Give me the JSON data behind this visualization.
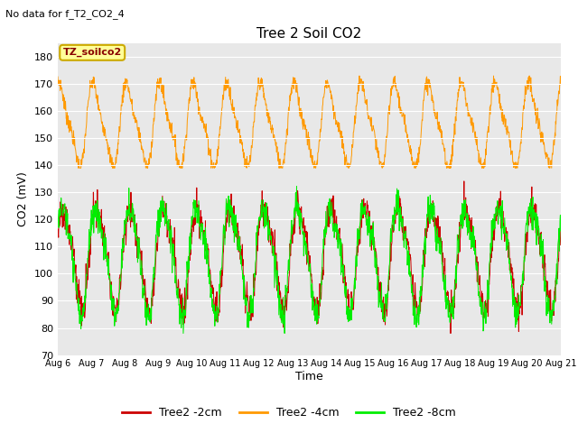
{
  "title": "Tree 2 Soil CO2",
  "subtitle": "No data for f_T2_CO2_4",
  "ylabel": "CO2 (mV)",
  "xlabel": "Time",
  "ylim": [
    70,
    185
  ],
  "yticks": [
    70,
    80,
    90,
    100,
    110,
    120,
    130,
    140,
    150,
    160,
    170,
    180
  ],
  "x_labels": [
    "Aug 6",
    "Aug 7",
    "Aug 8",
    "Aug 9",
    "Aug 10",
    "Aug 11",
    "Aug 12",
    "Aug 13",
    "Aug 14",
    "Aug 15",
    "Aug 16",
    "Aug 17",
    "Aug 18",
    "Aug 19",
    "Aug 20",
    "Aug 21"
  ],
  "color_2cm": "#cc0000",
  "color_4cm": "#ff9900",
  "color_8cm": "#00ee00",
  "legend_labels": [
    "Tree2 -2cm",
    "Tree2 -4cm",
    "Tree2 -8cm"
  ],
  "plot_bg_color": "#e8e8e8",
  "label_box_color": "#ffff99",
  "label_box_edge": "#ccaa00",
  "label_text": "TZ_soilco2",
  "n_points": 1500,
  "seed": 7
}
